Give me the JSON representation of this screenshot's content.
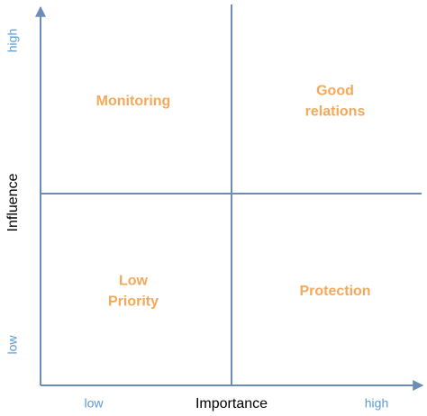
{
  "x_axis": {
    "label": "Importance",
    "low": "low",
    "high": "high"
  },
  "y_axis": {
    "label": "Influence",
    "low": "low",
    "high": "high"
  },
  "quadrants": [
    {
      "lines": [
        "Monitoring"
      ]
    },
    {
      "lines": [
        "Good",
        "relations"
      ]
    },
    {
      "lines": [
        "Low",
        "Priority"
      ]
    },
    {
      "lines": [
        "Protection"
      ]
    }
  ]
}
